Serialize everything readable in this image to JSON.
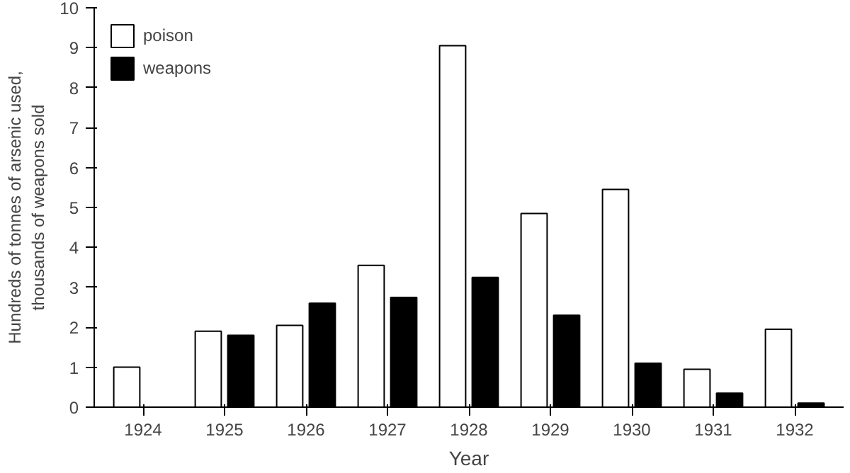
{
  "chart_data": {
    "type": "bar",
    "xlabel": "Year",
    "ylabel": "Hundreds of tonnes of arsenic used, thousands of weapons sold",
    "categories": [
      "1924",
      "1925",
      "1926",
      "1927",
      "1928",
      "1929",
      "1930",
      "1931",
      "1932"
    ],
    "series": [
      {
        "name": "poison",
        "color": "#ffffff",
        "values": [
          1.0,
          1.9,
          2.05,
          3.55,
          9.05,
          4.85,
          5.45,
          0.95,
          1.95
        ]
      },
      {
        "name": "weapons",
        "color": "#000000",
        "values": [
          0,
          1.8,
          2.6,
          2.75,
          3.25,
          2.3,
          1.1,
          0.35,
          0.1
        ]
      }
    ],
    "ylim": [
      0,
      10
    ],
    "yticks": [
      0,
      1,
      2,
      3,
      4,
      5,
      6,
      7,
      8,
      9,
      10
    ],
    "grid": false,
    "legend": "top left"
  }
}
